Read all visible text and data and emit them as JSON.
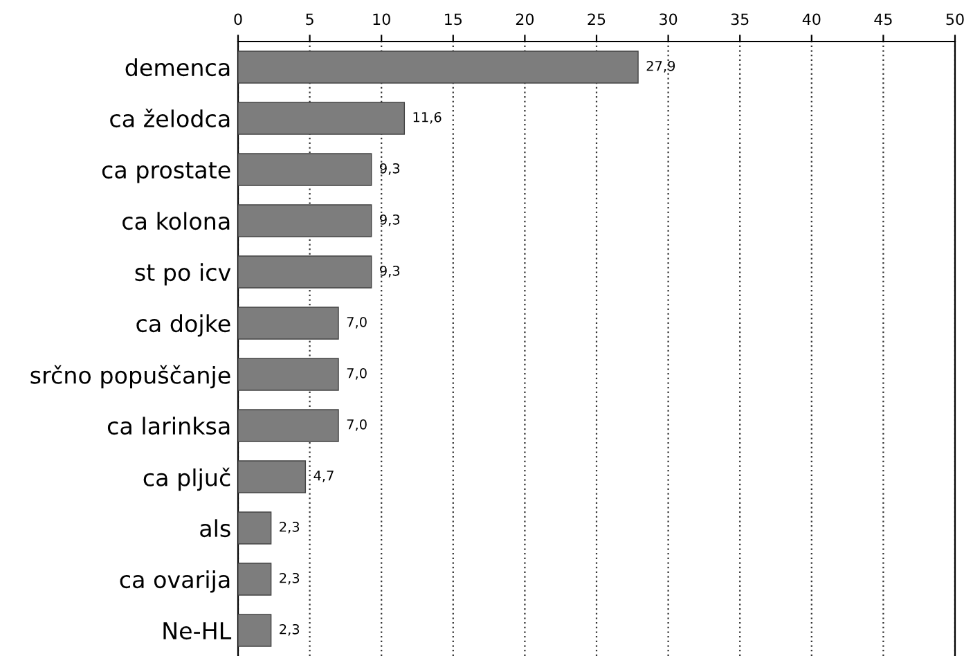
{
  "chart_data": {
    "type": "bar",
    "orientation": "horizontal",
    "categories": [
      "demenca",
      "ca želodca",
      "ca prostate",
      "ca kolona",
      "st po icv",
      "ca dojke",
      "srčno popuščanje",
      "ca larinksa",
      "ca pljuč",
      "als",
      "ca ovarija",
      "Ne-HL"
    ],
    "values": [
      27.9,
      11.6,
      9.3,
      9.3,
      9.3,
      7.0,
      7.0,
      7.0,
      4.7,
      2.3,
      2.3,
      2.3
    ],
    "value_labels": [
      "27,9",
      "11,6",
      "9,3",
      "9,3",
      "9,3",
      "7,0",
      "7,0",
      "7,0",
      "4,7",
      "2,3",
      "2,3",
      "2,3"
    ],
    "color": "#7d7d7d",
    "xlim": [
      0,
      50
    ],
    "xticks": [
      0,
      5,
      10,
      15,
      20,
      25,
      30,
      35,
      40,
      45,
      50
    ],
    "grid": "x"
  }
}
